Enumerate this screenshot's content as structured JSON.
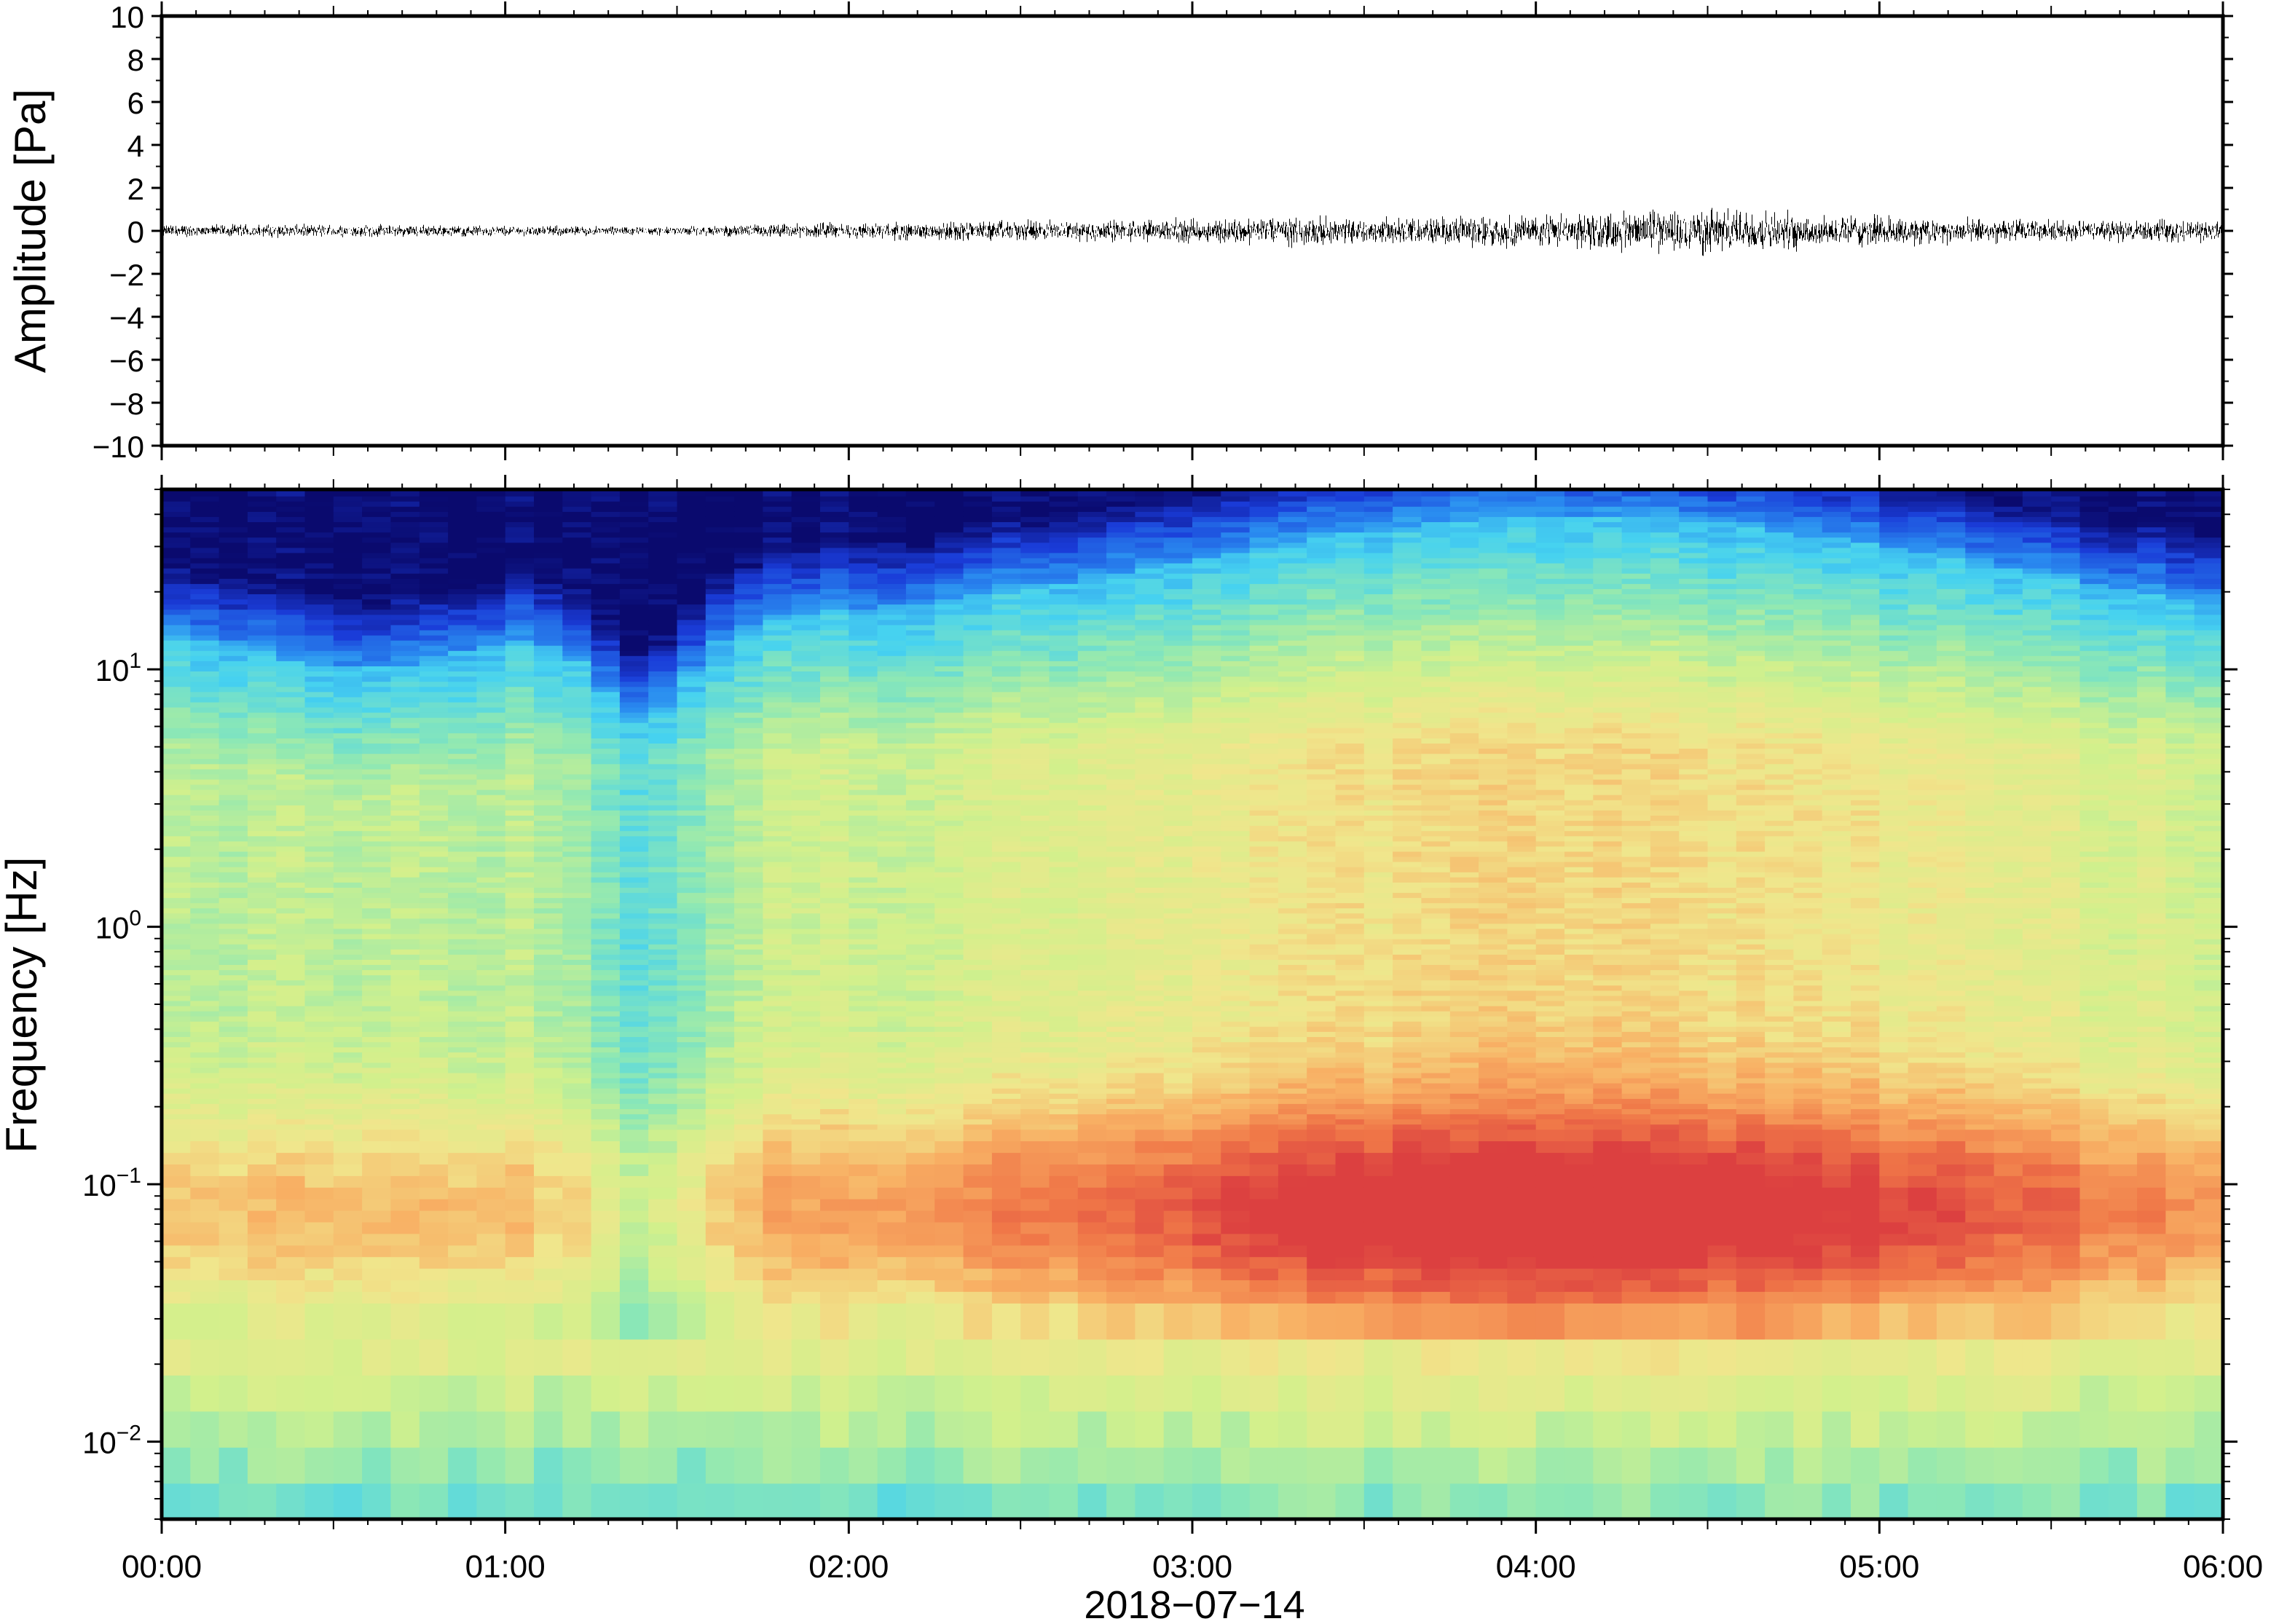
{
  "chart_data": [
    {
      "type": "line",
      "panel": "waveform",
      "ylabel": "Amplitude [Pa]",
      "ylim": [
        -10,
        10
      ],
      "yticks": [
        10,
        8,
        6,
        4,
        2,
        0,
        -2,
        -4,
        -6,
        -8,
        -10
      ],
      "ytick_labels": [
        "10",
        "8",
        "6",
        "4",
        "2",
        "0",
        "−2",
        "−4",
        "−6",
        "−8",
        "−10"
      ],
      "xlim_hours": [
        0,
        6
      ],
      "envelope": {
        "x_hours": [
          0,
          0.5,
          1.0,
          1.5,
          1.75,
          2.0,
          2.5,
          3.0,
          3.25,
          3.5,
          3.75,
          4.0,
          4.25,
          4.5,
          4.75,
          5.0,
          5.5,
          6.0
        ],
        "amplitude": [
          0.3,
          0.3,
          0.25,
          0.2,
          0.3,
          0.4,
          0.5,
          0.55,
          0.7,
          0.6,
          0.65,
          0.8,
          0.9,
          1.1,
          0.9,
          0.7,
          0.5,
          0.5
        ]
      },
      "line_color": "#000000"
    },
    {
      "type": "heatmap",
      "panel": "spectrogram",
      "ylabel": "Frequency [Hz]",
      "yscale": "log",
      "ylim": [
        0.005,
        50
      ],
      "yticks": [
        10,
        1,
        0.1,
        0.01
      ],
      "ytick_labels": [
        {
          "base": "10",
          "exp": "1"
        },
        {
          "base": "10",
          "exp": "0"
        },
        {
          "base": "10",
          "exp": "−1"
        },
        {
          "base": "10",
          "exp": "−2"
        }
      ],
      "xlabel": "2018−07−14",
      "xticks": [
        "00:00",
        "01:00",
        "02:00",
        "03:00",
        "04:00",
        "05:00",
        "06:00"
      ],
      "xlim_hours": [
        0,
        6
      ],
      "colormap": [
        "#0a0a6e",
        "#1a3cd8",
        "#2a8cf0",
        "#46d2f0",
        "#8ee8b4",
        "#d2f08c",
        "#f0e68c",
        "#f8b064",
        "#f07848",
        "#dc4040"
      ],
      "description_bands": {
        "high_freq_quiet_dip_hour": 1.4,
        "microbarom_peak_hz": 0.1,
        "peak_energy_hours": [
          3.0,
          5.0
        ]
      }
    }
  ]
}
